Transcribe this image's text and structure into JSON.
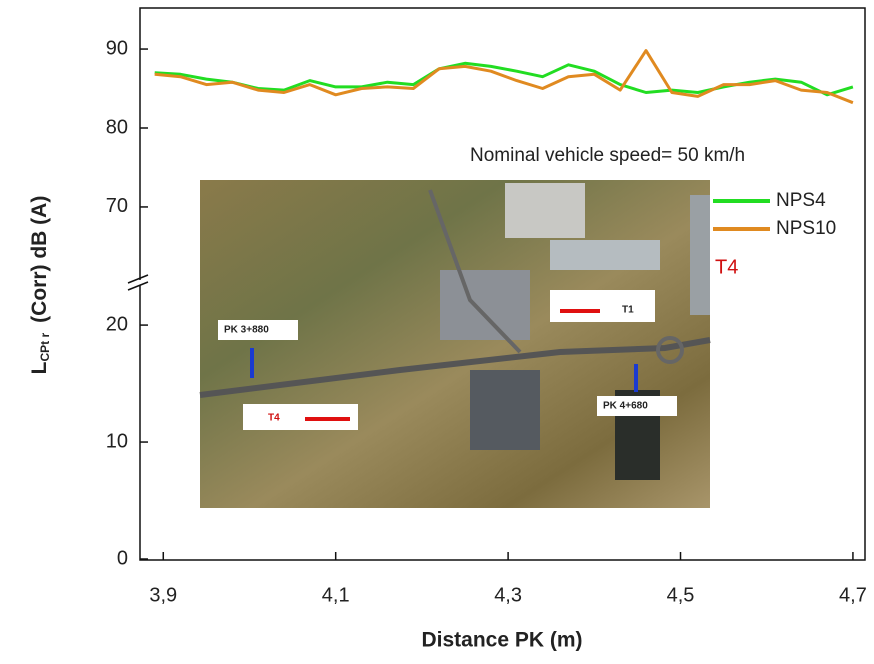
{
  "chart_data": {
    "type": "line",
    "x_label": "Distance  PK (m)",
    "y_label": "L",
    "y_label_sub": "CPt r",
    "y_label_rest": "(Corr)   dB (A)",
    "annotation": "Nominal vehicle speed= 50 km/h",
    "marker_label": "T4",
    "inset_labels": [
      "PK 3+880",
      "PK 4+680",
      "T1",
      "T4"
    ],
    "x": [
      3.89,
      3.92,
      3.95,
      3.98,
      4.01,
      4.04,
      4.07,
      4.1,
      4.13,
      4.16,
      4.19,
      4.22,
      4.25,
      4.28,
      4.31,
      4.34,
      4.37,
      4.4,
      4.43,
      4.46,
      4.49,
      4.52,
      4.55,
      4.58,
      4.61,
      4.64,
      4.67,
      4.7
    ],
    "xlim": [
      3.873,
      4.714
    ],
    "xticks": [
      {
        "value": 3.9,
        "label": "3,9"
      },
      {
        "value": 4.1,
        "label": "4,1"
      },
      {
        "value": 4.3,
        "label": "4,3"
      },
      {
        "value": 4.5,
        "label": "4,5"
      },
      {
        "value": 4.7,
        "label": "4,7"
      }
    ],
    "y_segments": [
      {
        "ylim": [
          0,
          23
        ],
        "yticks": [
          0,
          10,
          20
        ]
      },
      {
        "ylim": [
          61,
          95.2
        ],
        "yticks": [
          70,
          80,
          90
        ]
      }
    ],
    "series": [
      {
        "name": "NPS4",
        "color": "#22dd22",
        "values": [
          87,
          86.8,
          86.2,
          85.8,
          85,
          84.8,
          86,
          85.2,
          85.2,
          85.8,
          85.5,
          87.5,
          88.2,
          87.8,
          87.2,
          86.5,
          88,
          87.2,
          85.5,
          84.5,
          84.8,
          84.5,
          85.2,
          85.8,
          86.2,
          85.8,
          84.2,
          85.2
        ]
      },
      {
        "name": "NPS10",
        "color": "#e08a20",
        "values": [
          86.8,
          86.5,
          85.5,
          85.8,
          84.8,
          84.5,
          85.5,
          84.2,
          85,
          85.2,
          85,
          87.5,
          87.8,
          87.2,
          86,
          85,
          86.5,
          86.8,
          84.8,
          89.8,
          84.5,
          84,
          85.5,
          85.5,
          86,
          84.8,
          84.5,
          83.2
        ]
      }
    ]
  }
}
